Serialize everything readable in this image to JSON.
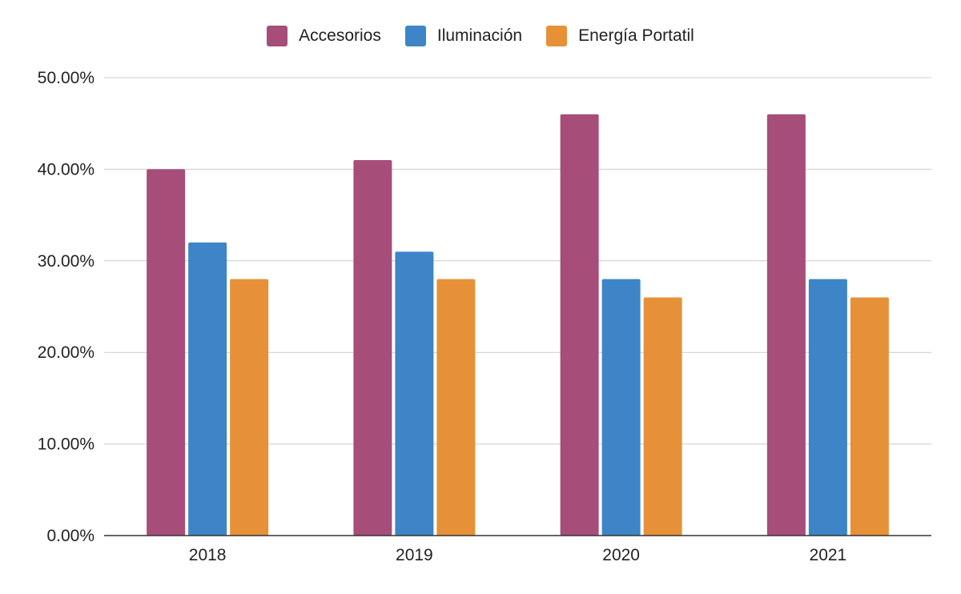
{
  "chart_data": {
    "type": "bar",
    "categories": [
      "2018",
      "2019",
      "2020",
      "2021"
    ],
    "series": [
      {
        "name": "Accesorios",
        "color": "#a64d79",
        "values": [
          40,
          41,
          46,
          46
        ]
      },
      {
        "name": "Iluminación",
        "color": "#3d85c6",
        "values": [
          32,
          31,
          28,
          28
        ]
      },
      {
        "name": "Energía Portatil",
        "color": "#e69138",
        "values": [
          28,
          28,
          26,
          26
        ]
      }
    ],
    "y_ticks": [
      "0.00%",
      "10.00%",
      "20.00%",
      "30.00%",
      "40.00%",
      "50.00%"
    ],
    "ylim": [
      0,
      50
    ],
    "title": "",
    "xlabel": "",
    "ylabel": "",
    "grid": true,
    "legend_position": "top-center"
  }
}
